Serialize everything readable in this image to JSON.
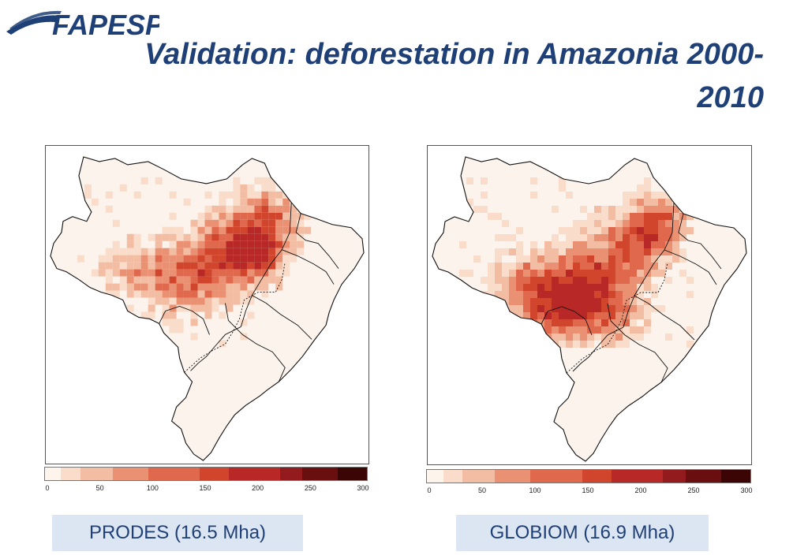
{
  "logo": {
    "text": "FAPESP"
  },
  "title": "Validation: deforestation in Amazonia 2000-2010",
  "legend": {
    "ticks": [
      "0",
      "50",
      "100",
      "150",
      "200",
      "250",
      "300"
    ],
    "colors": [
      "#fdf4ec",
      "#f9dcc9",
      "#f3bda3",
      "#eb9173",
      "#e0684d",
      "#d1452d",
      "#b72826",
      "#931b1e",
      "#6a0f10",
      "#3b0505"
    ]
  },
  "maps": [
    {
      "id": "prodes",
      "caption": "PRODES (16.5 Mha)"
    },
    {
      "id": "globiom",
      "caption": "GLOBIOM (16.9 Mha)"
    }
  ],
  "colors": {
    "title": "#1f3f77",
    "caption_bg": "#dce6f2",
    "land": "#fbf3ec",
    "outline": "#111111"
  }
}
